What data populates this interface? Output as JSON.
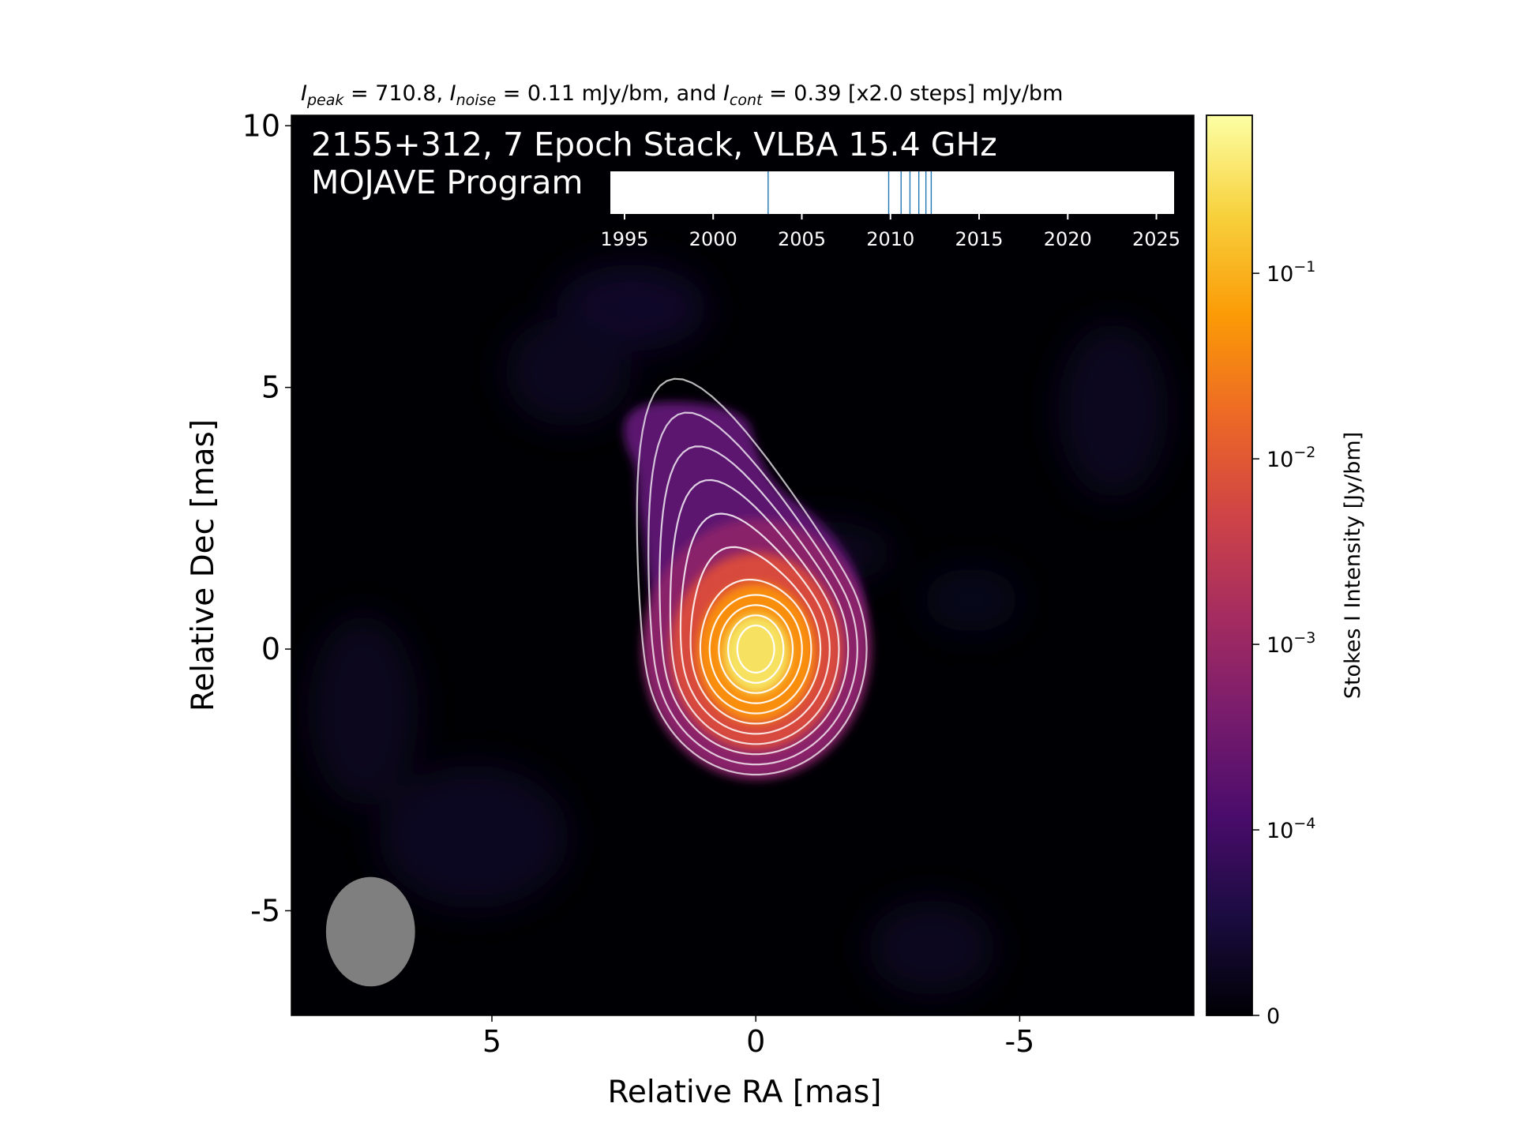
{
  "chart_data": {
    "type": "heatmap",
    "title": {
      "i_peak_symbol": "I",
      "i_peak_sub": "peak",
      "peak_value": " = 710.8, ",
      "i_noise_symbol": "I",
      "i_noise_sub": "noise",
      "noise_value": " = 0.11 mJy/bm, and ",
      "i_cont_symbol": "I",
      "i_cont_sub": "cont",
      "cont_value": " = 0.39 [x2.0 steps] mJy/bm"
    },
    "annotation_line1": "2155+312, 7 Epoch Stack, VLBA 15.4 GHz",
    "annotation_line2": "MOJAVE Program",
    "xlabel": "Relative RA [mas]",
    "ylabel": "Relative Dec [mas]",
    "xlim": [
      8.8,
      -8.3
    ],
    "ylim": [
      -7.0,
      10.2
    ],
    "x_reversed": true,
    "x_ticks": [
      5,
      0,
      -5
    ],
    "x_tick_labels": [
      "5",
      "0",
      "-5"
    ],
    "y_ticks": [
      10,
      5,
      0,
      -5
    ],
    "y_tick_labels": [
      "10",
      "5",
      "0",
      "-5"
    ],
    "background": "#000004",
    "source": {
      "peak_jy_per_beam": 0.7108,
      "core_position": [
        0,
        0
      ],
      "jet_direction": "north-east"
    },
    "contours": {
      "base_mjy_per_beam": 0.39,
      "step_factor": 2.0,
      "levels_mjy_per_beam": [
        0.39,
        0.78,
        1.56,
        3.12,
        6.24,
        12.48,
        24.96,
        49.92,
        99.84,
        199.68,
        399.36
      ],
      "color": "#ffffff"
    },
    "beam": {
      "center": [
        7.3,
        -5.4
      ],
      "major_mas": 1.55,
      "minor_mas": 1.25,
      "pa_deg": 0,
      "color": "#7f7f7f"
    },
    "epochs": {
      "years": [
        2003.1,
        2009.9,
        2010.6,
        2011.1,
        2011.6,
        2012.0,
        2012.3
      ],
      "xlim": [
        1994.2,
        2026.0
      ],
      "ticks": [
        1995,
        2000,
        2005,
        2010,
        2015,
        2020,
        2025
      ],
      "tick_labels": [
        "1995",
        "2000",
        "2005",
        "2010",
        "2015",
        "2020",
        "2025"
      ],
      "line_color": "#1f77b4"
    },
    "colorbar": {
      "label": "Stokes I Intensity [Jy/bm]",
      "scale": "symlog",
      "linthresh": 0.0001,
      "vmin": 0,
      "vmax": 0.7108,
      "ticks": [
        0,
        0.0001,
        0.001,
        0.01,
        0.1
      ],
      "tick_labels": [
        {
          "base": "0",
          "exp": ""
        },
        {
          "base": "10",
          "exp": "−4"
        },
        {
          "base": "10",
          "exp": "−3"
        },
        {
          "base": "10",
          "exp": "−2"
        },
        {
          "base": "10",
          "exp": "−1"
        }
      ],
      "colormap": "inferno",
      "colormap_stops": [
        "#000004",
        "#1b0c41",
        "#4a0c6b",
        "#781c6d",
        "#a52c60",
        "#cf4446",
        "#ed6925",
        "#fb9b06",
        "#f7d13d",
        "#fcffa4"
      ]
    }
  }
}
